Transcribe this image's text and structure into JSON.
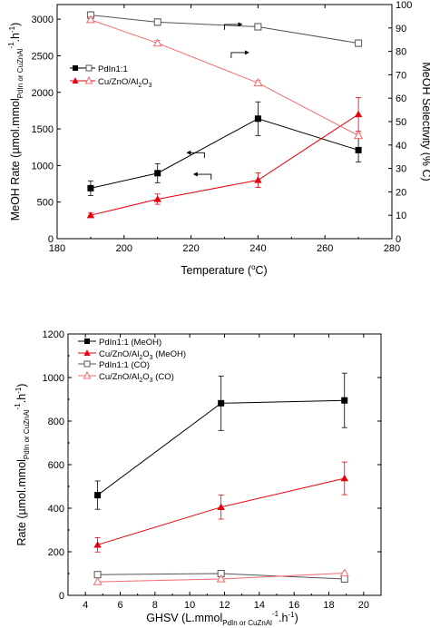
{
  "chart_data": [
    {
      "type": "line",
      "xlabel": "Temperature (°C)",
      "ylabel_left": "MeOH Rate (µmol.mmol_{PdIn or CuZnAl}^{-1}.h^{-1})",
      "ylabel_right": "MeOH Selectivity (% C)",
      "xlim": [
        180,
        280
      ],
      "ylim_left": [
        0,
        3200
      ],
      "ylim_right": [
        0,
        100
      ],
      "x_ticks": [
        180,
        200,
        220,
        240,
        260,
        280
      ],
      "y_ticks_left": [
        0,
        500,
        1000,
        1500,
        2000,
        2500,
        3000
      ],
      "y_ticks_right": [
        0,
        10,
        20,
        30,
        40,
        50,
        60,
        70,
        80,
        90,
        100
      ],
      "legend_position": "center-left",
      "series": [
        {
          "name": "PdIn1:1",
          "axis": "left",
          "color": "#000000",
          "marker": "square-filled",
          "x": [
            190,
            210,
            240,
            270
          ],
          "y": [
            690,
            895,
            1640,
            1210
          ],
          "err": [
            100,
            130,
            230,
            160
          ]
        },
        {
          "name": "Cu/ZnO/Al2O3",
          "axis": "left",
          "color": "#e8000b",
          "marker": "triangle-filled",
          "x": [
            190,
            210,
            240,
            270
          ],
          "y": [
            320,
            540,
            800,
            1700
          ],
          "err": [
            30,
            70,
            100,
            230
          ]
        },
        {
          "name": "PdIn1:1",
          "axis": "right",
          "color": "#555555",
          "marker": "square-open",
          "x": [
            190,
            210,
            240,
            270
          ],
          "y": [
            95.5,
            92.5,
            90.5,
            83.5
          ],
          "err": [
            1.4,
            1.4,
            1.4,
            1.4
          ]
        },
        {
          "name": "Cu/ZnO/Al2O3",
          "axis": "right",
          "color": "#f26b6b",
          "marker": "triangle-open",
          "x": [
            190,
            210,
            240,
            270
          ],
          "y": [
            93.5,
            83.5,
            66.5,
            44
          ],
          "err": [
            1.2,
            1.2,
            1.2,
            1.2
          ]
        }
      ],
      "annotations": [
        {
          "type": "arrow",
          "direction": "right",
          "at_x": 230,
          "at_y_right": 91.5
        },
        {
          "type": "arrow",
          "direction": "right",
          "at_x": 232,
          "at_y_right": 79.5
        },
        {
          "type": "arrow",
          "direction": "left",
          "at_x": 224,
          "at_y_left": 1175
        },
        {
          "type": "arrow",
          "direction": "left",
          "at_x": 226,
          "at_y_left": 880
        }
      ]
    },
    {
      "type": "line",
      "xlabel": "GHSV (L.mmol_{PdIn or CuZnAl}^{-1}.h^{-1})",
      "ylabel": "Rate (µmol.mmol_{PdIn or CuZnAl}^{-1}.h^{-1})",
      "xlim": [
        3,
        21
      ],
      "ylim": [
        0,
        1200
      ],
      "x_ticks": [
        4,
        6,
        8,
        10,
        12,
        14,
        16,
        18,
        20
      ],
      "y_ticks": [
        0,
        200,
        400,
        600,
        800,
        1000,
        1200
      ],
      "legend_position": "top-left",
      "series": [
        {
          "name": "PdIn1:1 (MeOH)",
          "color": "#000000",
          "marker": "square-filled",
          "x": [
            4.7,
            11.8,
            18.9
          ],
          "y": [
            460,
            882,
            895
          ],
          "err": [
            65,
            125,
            125
          ]
        },
        {
          "name": "Cu/ZnO/Al2O3 (MeOH)",
          "color": "#e8000b",
          "marker": "triangle-filled",
          "x": [
            4.7,
            11.8,
            18.9
          ],
          "y": [
            232,
            405,
            537
          ],
          "err": [
            33,
            55,
            75
          ]
        },
        {
          "name": "PdIn1:1 (CO)",
          "color": "#555555",
          "marker": "square-open",
          "x": [
            4.7,
            11.8,
            18.9
          ],
          "y": [
            95,
            100,
            75
          ],
          "err": [
            0,
            0,
            0
          ]
        },
        {
          "name": "Cu/ZnO/Al2O3 (CO)",
          "color": "#f26b6b",
          "marker": "triangle-open",
          "x": [
            4.7,
            11.8,
            18.9
          ],
          "y": [
            62,
            75,
            102
          ],
          "err": [
            0,
            0,
            0
          ]
        }
      ]
    }
  ],
  "text": {
    "top": {
      "xlabel_main": "Temperature (",
      "xlabel_sup": "o",
      "xlabel_end": "C)",
      "ylabel_left_main": "MeOH Rate (µmol.mmol",
      "ylabel_left_sub": "PdIn or CuZnAl",
      "ylabel_left_sup": "-1",
      "ylabel_left_end": ".h",
      "ylabel_left_sup2": "-1",
      "ylabel_left_close": ")",
      "ylabel_right": "MeOH Selectivity (% C)",
      "legend": [
        {
          "label": "PdIn1:1"
        },
        {
          "label_main": "Cu/ZnO/Al",
          "sub1": "2",
          "mid": "O",
          "sub2": "3"
        }
      ]
    },
    "bottom": {
      "xlabel_main": "GHSV (L.mmol",
      "xlabel_sub": "PdIn or CuZnAl",
      "xlabel_sup": "-1",
      "xlabel_end": ".h",
      "xlabel_sup2": "-1",
      "xlabel_close": ")",
      "ylabel_main": "Rate (µmol.mmol",
      "ylabel_sub": "PdIn or CuZnAl",
      "ylabel_sup": "-1",
      "ylabel_end": ".h",
      "ylabel_sup2": "-1",
      "ylabel_close": ")",
      "legend": [
        {
          "label": "PdIn1:1 (MeOH)"
        },
        {
          "label_main": "Cu/ZnO/Al",
          "sub1": "2",
          "mid": "O",
          "sub2": "3",
          "tail": " (MeOH)"
        },
        {
          "label": "PdIn1:1 (CO)"
        },
        {
          "label_main": "Cu/ZnO/Al",
          "sub1": "2",
          "mid": "O",
          "sub2": "3",
          "tail": " (CO)"
        }
      ]
    }
  }
}
